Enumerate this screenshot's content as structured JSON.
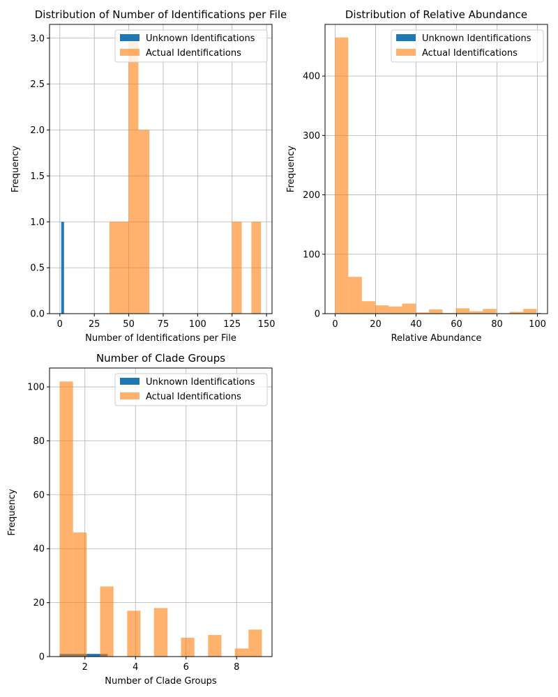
{
  "figure": {
    "colors": {
      "unknown": "#1f77b4",
      "actual": "#ff7f0e",
      "grid": "#b0b0b0",
      "axis": "#000000"
    }
  },
  "chart_data": [
    {
      "type": "bar",
      "title": "Distribution of Number of Identifications per File",
      "xlabel": "Number of Identifications per File",
      "ylabel": "Frequency",
      "xlim": [
        -7.5,
        154
      ],
      "ylim": [
        0,
        3.15
      ],
      "xticks": [
        0,
        25,
        50,
        75,
        100,
        125,
        150
      ],
      "yticks": [
        0.0,
        0.5,
        1.0,
        1.5,
        2.0,
        2.5,
        3.0
      ],
      "xtick_labels": [
        "0",
        "25",
        "50",
        "75",
        "100",
        "125",
        "150"
      ],
      "ytick_labels": [
        "0.0",
        "0.5",
        "1.0",
        "1.5",
        "2.0",
        "2.5",
        "3.0"
      ],
      "grid": true,
      "legend": "top-right",
      "series": [
        {
          "name": "Unknown Identifications",
          "color": "#1f77b4",
          "alpha": 1.0,
          "bins": [
            [
              1,
              3,
              1
            ]
          ]
        },
        {
          "name": "Actual Identifications",
          "color": "#ff7f0e",
          "alpha": 0.6,
          "bins": [
            [
              36,
              50,
              1
            ],
            [
              50,
              57,
              3
            ],
            [
              57,
              65,
              2
            ],
            [
              125,
              132,
              1
            ],
            [
              139,
              146,
              1
            ]
          ]
        }
      ]
    },
    {
      "type": "bar",
      "title": "Distribution of Relative Abundance",
      "xlabel": "Relative Abundance",
      "ylabel": "Frequency",
      "xlim": [
        -5,
        105
      ],
      "ylim": [
        0,
        487
      ],
      "xticks": [
        0,
        20,
        40,
        60,
        80,
        100
      ],
      "yticks": [
        0,
        100,
        200,
        300,
        400
      ],
      "xtick_labels": [
        "0",
        "20",
        "40",
        "60",
        "80",
        "100"
      ],
      "ytick_labels": [
        "0",
        "100",
        "200",
        "300",
        "400"
      ],
      "grid": true,
      "legend": "top-right",
      "series": [
        {
          "name": "Unknown Identifications",
          "color": "#1f77b4",
          "alpha": 1.0,
          "bins": [
            [
              100,
              101.6,
              1
            ]
          ]
        },
        {
          "name": "Actual Identifications",
          "color": "#ff7f0e",
          "alpha": 0.6,
          "bins": [
            [
              0,
              6.5,
              465
            ],
            [
              6.5,
              13.2,
              62
            ],
            [
              13.2,
              19.8,
              21
            ],
            [
              19.8,
              26.5,
              14
            ],
            [
              26.5,
              33.1,
              12
            ],
            [
              33.1,
              39.8,
              17
            ],
            [
              39.8,
              46.4,
              2
            ],
            [
              46.4,
              53.1,
              7
            ],
            [
              53.1,
              59.7,
              1
            ],
            [
              59.7,
              66.4,
              9
            ],
            [
              66.4,
              73.0,
              4
            ],
            [
              73.0,
              79.7,
              8
            ],
            [
              79.7,
              86.3,
              0
            ],
            [
              86.3,
              93.0,
              3
            ],
            [
              93.0,
              99.6,
              8
            ]
          ]
        }
      ]
    },
    {
      "type": "bar",
      "title": "Number of Clade Groups",
      "xlabel": "Number of Clade Groups",
      "ylabel": "Frequency",
      "xlim": [
        0.6,
        9.4
      ],
      "ylim": [
        0,
        107
      ],
      "xticks": [
        2,
        4,
        6,
        8
      ],
      "yticks": [
        0,
        20,
        40,
        60,
        80,
        100
      ],
      "xtick_labels": [
        "2",
        "4",
        "6",
        "8"
      ],
      "ytick_labels": [
        "0",
        "20",
        "40",
        "60",
        "80",
        "100"
      ],
      "grid": true,
      "legend": "top-right",
      "series": [
        {
          "name": "Unknown Identifications",
          "color": "#1f77b4",
          "alpha": 1.0,
          "bins": [
            [
              1.0,
              2.1,
              1
            ],
            [
              2.1,
              2.9,
              1
            ]
          ]
        },
        {
          "name": "Actual Identifications",
          "color": "#ff7f0e",
          "alpha": 0.6,
          "bins": [
            [
              1.0,
              1.53,
              102
            ],
            [
              1.53,
              2.07,
              46
            ],
            [
              2.6,
              3.13,
              26
            ],
            [
              3.67,
              4.2,
              17
            ],
            [
              4.73,
              5.27,
              18
            ],
            [
              5.8,
              6.33,
              7
            ],
            [
              6.87,
              7.4,
              8
            ],
            [
              7.93,
              8.47,
              3
            ],
            [
              8.47,
              9.0,
              10
            ]
          ]
        }
      ]
    }
  ]
}
